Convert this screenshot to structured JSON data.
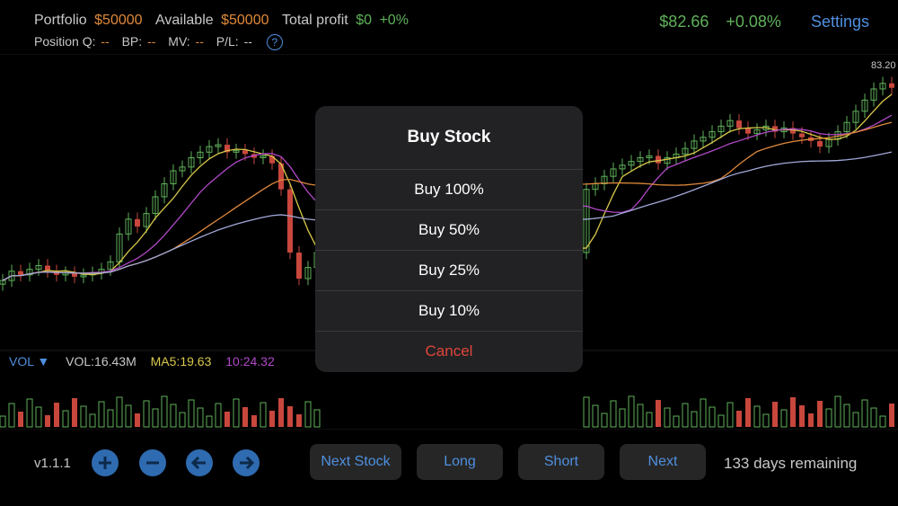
{
  "header": {
    "portfolio_label": "Portfolio",
    "portfolio_value": "$50000",
    "available_label": "Available",
    "available_value": "$50000",
    "total_profit_label": "Total profit",
    "total_profit_value": "$0",
    "total_profit_pct": "+0%",
    "position_q_label": "Position Q:",
    "position_q_value": "--",
    "bp_label": "BP:",
    "bp_value": "--",
    "mv_label": "MV:",
    "mv_value": "--",
    "pl_label": "P/L:",
    "pl_value": "--",
    "help_icon": "?",
    "price": "$82.66",
    "change": "+0.08%",
    "settings_label": "Settings"
  },
  "colors": {
    "up": "#5fb15a",
    "down": "#c8473d",
    "accent": "#4f8fe0",
    "ma5": "#d8c84a",
    "ma10": "#b048c8",
    "ma20": "#e0893a",
    "ma60": "#a0a8d8"
  },
  "chart_data": {
    "type": "candlestick",
    "max_label": "83.20",
    "ylim": [
      69.5,
      84.0
    ]
  },
  "volume_legend": {
    "label": "VOL",
    "dropdown_icon": "▼",
    "vol": "VOL:16.43M",
    "ma5": "MA5:19.63",
    "ma10": "10:24.32"
  },
  "footer": {
    "version": "v1.1.1",
    "next_stock_label": "Next Stock",
    "long_label": "Long",
    "short_label": "Short",
    "next_label": "Next",
    "remaining": "133 days remaining"
  },
  "modal": {
    "title": "Buy Stock",
    "options": [
      "Buy 100%",
      "Buy 50%",
      "Buy 25%",
      "Buy 10%"
    ],
    "cancel": "Cancel"
  }
}
